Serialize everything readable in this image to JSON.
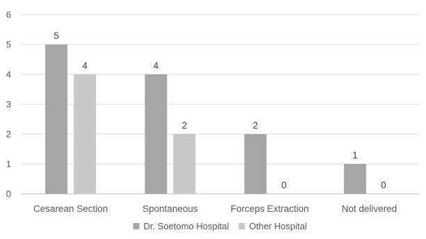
{
  "chart_data": {
    "type": "bar",
    "categories": [
      "Cesarean Section",
      "Spontaneous",
      "Forceps Extraction",
      "Not delivered"
    ],
    "series": [
      {
        "name": "Dr. Soetomo Hospital",
        "values": [
          5,
          4,
          2,
          1
        ],
        "color": "#a6a6a6"
      },
      {
        "name": "Other Hospital",
        "values": [
          4,
          2,
          0,
          0
        ],
        "color": "#c8c8c8"
      }
    ],
    "ylim": [
      0,
      6
    ],
    "yticks": [
      0,
      1,
      2,
      3,
      4,
      5,
      6
    ],
    "grid": true,
    "legend": "bottom",
    "data_labels": true,
    "title": "",
    "xlabel": "",
    "ylabel": ""
  }
}
